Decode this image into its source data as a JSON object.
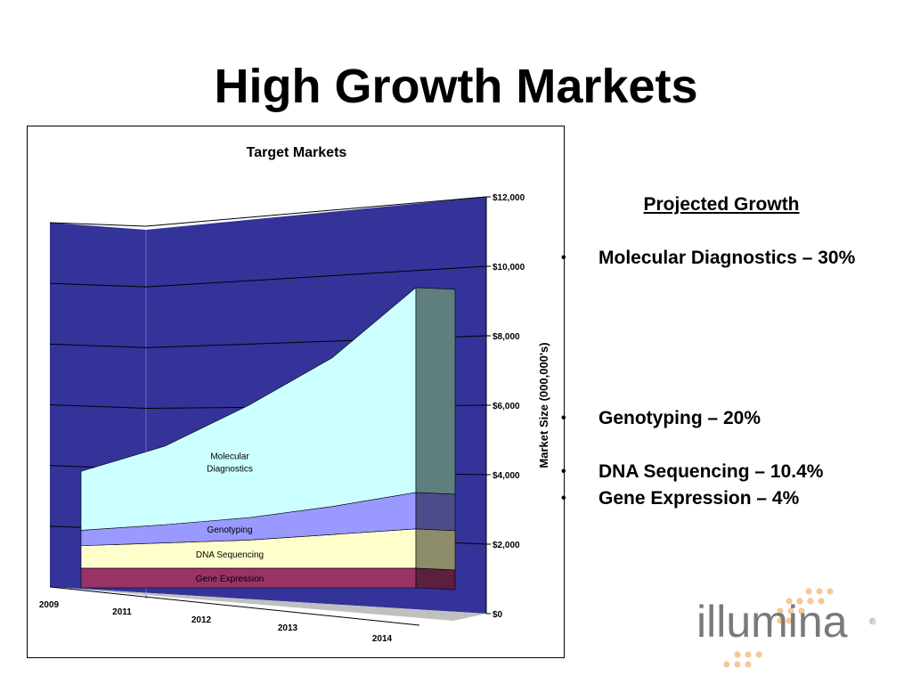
{
  "slide": {
    "title": "High Growth Markets"
  },
  "chart_data": {
    "type": "area",
    "title": "Target Markets",
    "ylabel": "Market Size (000,000's)",
    "xlabel": "",
    "x": [
      "2009",
      "2011",
      "2012",
      "2013",
      "2014"
    ],
    "y_ticks": [
      "$0",
      "$2,000",
      "$4,000",
      "$6,000",
      "$8,000",
      "$10,000",
      "$12,000"
    ],
    "ylim": [
      0,
      12000
    ],
    "stacked": true,
    "grid": true,
    "series": [
      {
        "name": "Gene Expression",
        "label_lines": [
          "Gene Expression"
        ],
        "color": "#993366",
        "values": [
          700,
          700,
          700,
          700,
          700
        ]
      },
      {
        "name": "DNA Sequencing",
        "label_lines": [
          "DNA Sequencing"
        ],
        "color": "#ffffcc",
        "values": [
          800,
          900,
          1000,
          1200,
          1400
        ]
      },
      {
        "name": "Genotyping",
        "label_lines": [
          "Genotyping"
        ],
        "color": "#9999ff",
        "values": [
          550,
          650,
          800,
          1000,
          1300
        ]
      },
      {
        "name": "Molecular Diagnostics",
        "label_lines": [
          "Molecular",
          "Diagnostics"
        ],
        "color": "#ccffff",
        "values": [
          2100,
          2800,
          4000,
          5300,
          7300
        ]
      }
    ],
    "colors": {
      "wall": "#333399",
      "floor": "#c0c0c0"
    }
  },
  "growth": {
    "heading": "Projected Growth",
    "bullet": "•",
    "items": [
      "Molecular Diagnostics – 30%",
      "Genotyping – 20%",
      "DNA Sequencing – 10.4%",
      "Gene Expression – 4%"
    ]
  },
  "logo": {
    "text": "illumina",
    "reg": "®",
    "dot_color": "#f5c896"
  }
}
